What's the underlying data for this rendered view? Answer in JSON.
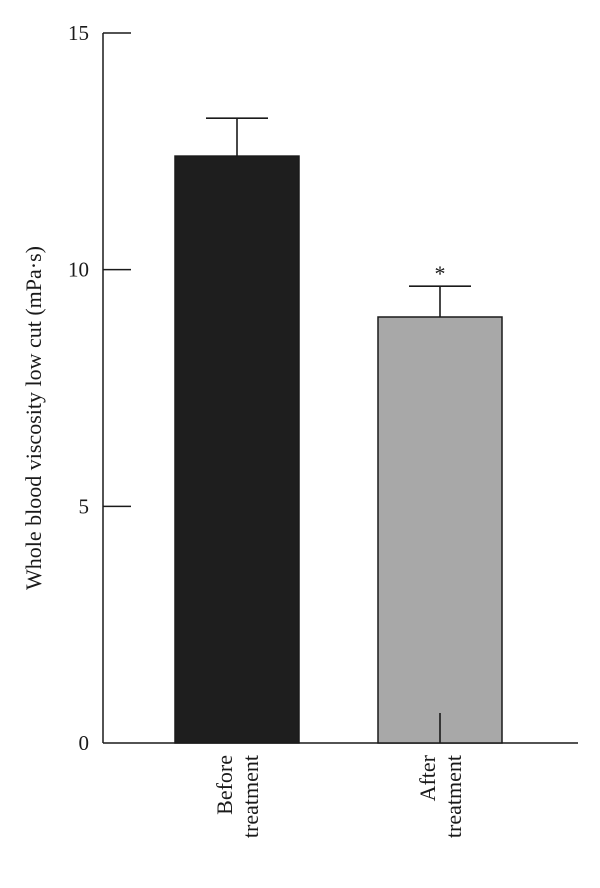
{
  "chart_data": {
    "type": "bar",
    "categories": [
      "Before treatment",
      "After treatment"
    ],
    "category_lines": [
      [
        "Before",
        "treatment"
      ],
      [
        "After",
        "treatment"
      ]
    ],
    "values": [
      12.4,
      9.0
    ],
    "errors": [
      0.8,
      0.65
    ],
    "bar_colors": [
      "#1e1e1e",
      "#a8a8a8"
    ],
    "annotations": [
      "",
      "*"
    ],
    "ylabel": "Whole blood viscosity low cut (mPa·s)",
    "xlabel": "",
    "title": "",
    "ylim": [
      0,
      15
    ],
    "yticks": [
      0,
      5,
      10,
      15
    ],
    "grid": false,
    "legend": "none"
  }
}
